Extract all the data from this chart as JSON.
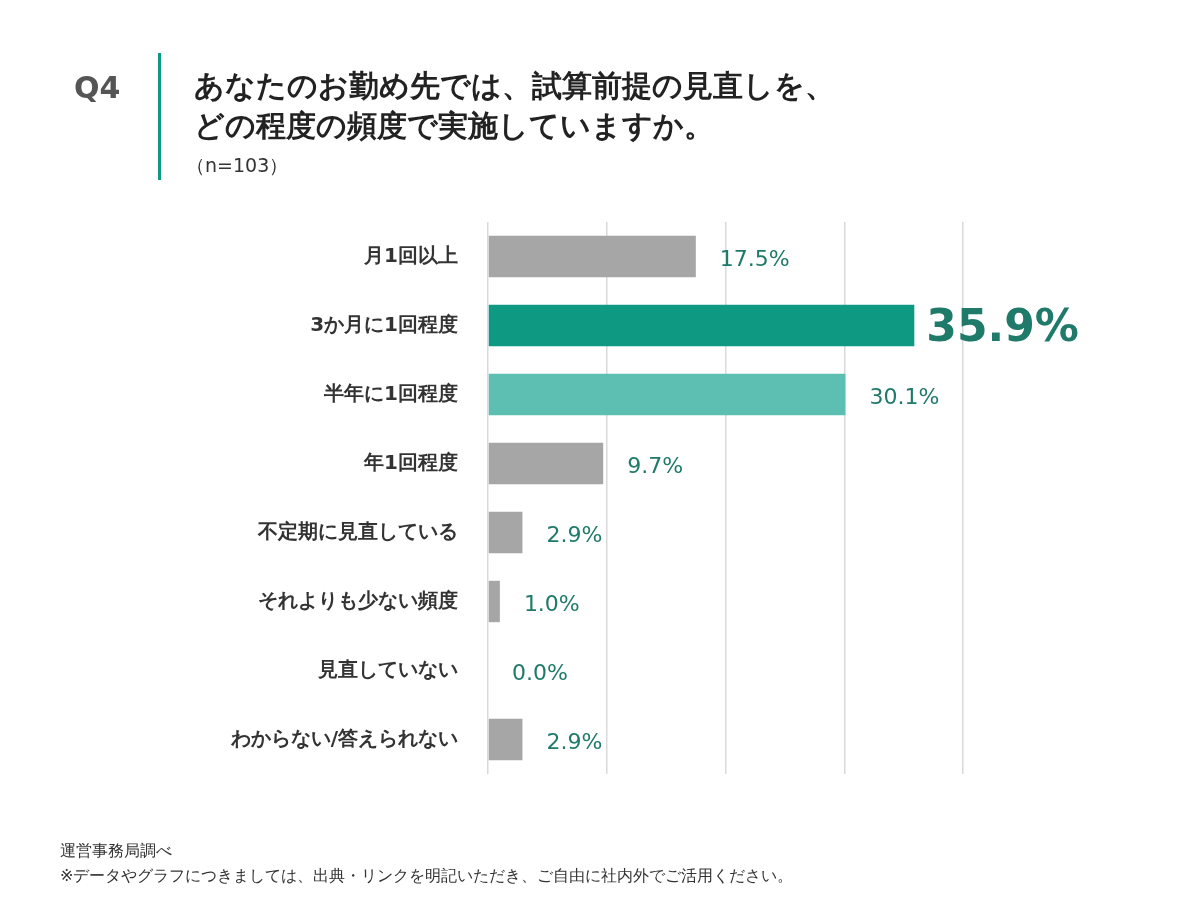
{
  "chart_data": {
    "type": "bar",
    "orientation": "horizontal",
    "title": "あなたのお勤め先では、試算前提の見直しを、どの程度の頻度で実施していますか。",
    "subtitle": "（n=103）",
    "categories": [
      "月1回以上",
      "3か月に1回程度",
      "半年に1回程度",
      "年1回程度",
      "不定期に見直している",
      "それよりも少ない頻度",
      "見直していない",
      "わからない/答えられない"
    ],
    "values": [
      17.5,
      35.9,
      30.1,
      9.7,
      2.9,
      1.0,
      0.0,
      2.9
    ],
    "colors": [
      "#a6a6a6",
      "#0e9a82",
      "#5dbfb1",
      "#a6a6a6",
      "#a6a6a6",
      "#a6a6a6",
      "#a6a6a6",
      "#a6a6a6"
    ],
    "value_labels": [
      "17.5%",
      "35.9%",
      "30.1%",
      "9.7%",
      "2.9%",
      "1.0%",
      "0.0%",
      "2.9%"
    ],
    "xlim": [
      0,
      40
    ],
    "xticks": [
      {
        "value": 0,
        "label": null
      },
      {
        "value": 10,
        "label": null
      },
      {
        "value": 20,
        "label": null
      },
      {
        "value": 30,
        "label": null
      },
      {
        "value": 40,
        "label": null
      }
    ],
    "grid": "x",
    "tick_labels": "y",
    "legend": false,
    "annotations": [
      "Q4",
      "運営事務局調べ",
      "※データやグラフにつきましては、出典・リンクを明記いただき、ご自由に社内外でご活用ください。"
    ]
  }
}
